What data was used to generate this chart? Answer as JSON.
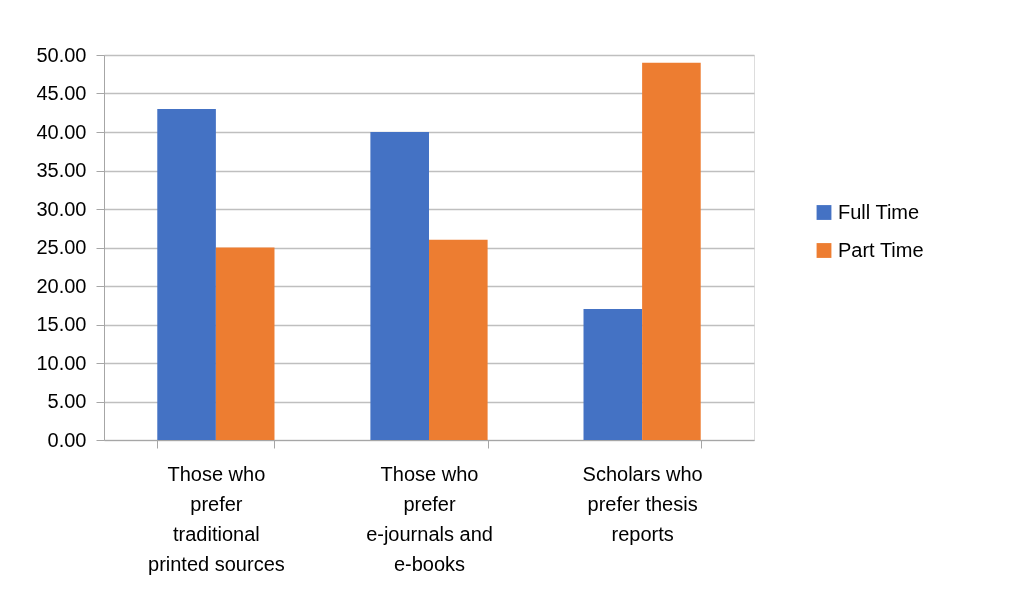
{
  "chart_data": {
    "type": "bar",
    "categories": [
      "Those who prefer traditional printed sources",
      "Those who prefer e-journals and e-books",
      "Scholars who prefer thesis reports"
    ],
    "series": [
      {
        "name": "Full Time",
        "color": "#4472c4",
        "values": [
          43,
          40,
          17
        ]
      },
      {
        "name": "Part Time",
        "color": "#ed7d31",
        "values": [
          25,
          26,
          49
        ]
      }
    ],
    "ylim": [
      0,
      50
    ],
    "yticks": [
      {
        "value": 0,
        "label": "0.00"
      },
      {
        "value": 5,
        "label": "5.00"
      },
      {
        "value": 10,
        "label": "10.00"
      },
      {
        "value": 15,
        "label": "15.00"
      },
      {
        "value": 20,
        "label": "20.00"
      },
      {
        "value": 25,
        "label": "25.00"
      },
      {
        "value": 30,
        "label": "30.00"
      },
      {
        "value": 35,
        "label": "35.00"
      },
      {
        "value": 40,
        "label": "40.00"
      },
      {
        "value": 45,
        "label": "45.00"
      },
      {
        "value": 50,
        "label": "50.00"
      }
    ],
    "grid": "y",
    "legend": "right"
  }
}
